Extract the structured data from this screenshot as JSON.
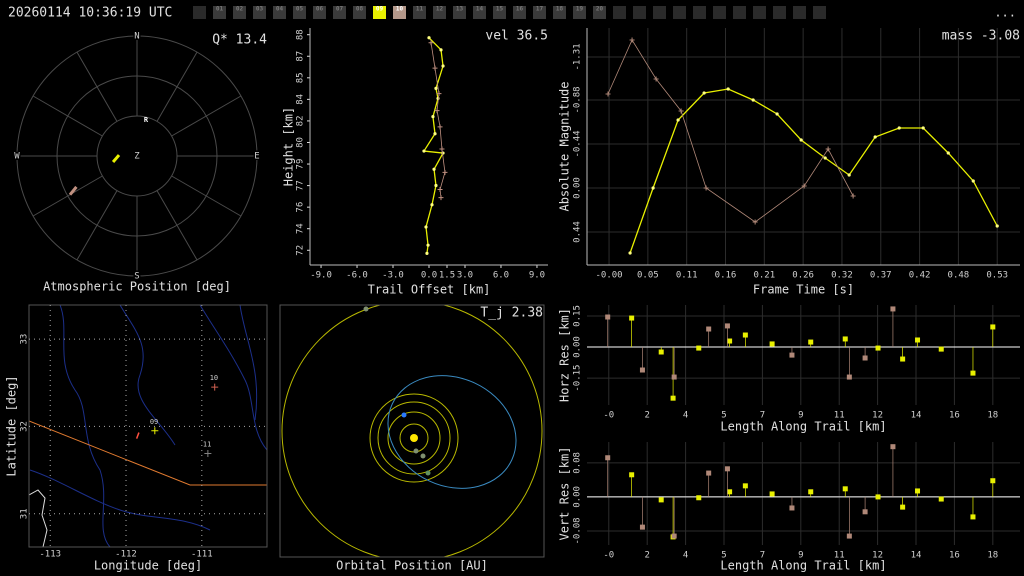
{
  "header": {
    "timestamp": "20260114 10:36:19 UTC",
    "menu": "...",
    "stations": [
      {
        "label": "01",
        "color": "#3a3a3a"
      },
      {
        "label": "02",
        "color": "#3a3a3a"
      },
      {
        "label": "03",
        "color": "#3a3a3a"
      },
      {
        "label": "04",
        "color": "#3a3a3a"
      },
      {
        "label": "05",
        "color": "#3a3a3a"
      },
      {
        "label": "06",
        "color": "#3a3a3a"
      },
      {
        "label": "07",
        "color": "#3a3a3a"
      },
      {
        "label": "08",
        "color": "#3a3a3a"
      },
      {
        "label": "09",
        "color": "#e8f000"
      },
      {
        "label": "10",
        "color": "#b4988a"
      },
      {
        "label": "11",
        "color": "#3a3a3a"
      },
      {
        "label": "12",
        "color": "#3a3a3a"
      },
      {
        "label": "13",
        "color": "#3a3a3a"
      },
      {
        "label": "14",
        "color": "#3a3a3a"
      },
      {
        "label": "15",
        "color": "#3a3a3a"
      },
      {
        "label": "16",
        "color": "#3a3a3a"
      },
      {
        "label": "17",
        "color": "#3a3a3a"
      },
      {
        "label": "18",
        "color": "#3a3a3a"
      },
      {
        "label": "19",
        "color": "#3a3a3a"
      },
      {
        "label": "20",
        "color": "#3a3a3a"
      }
    ]
  },
  "chart_data": [
    {
      "type": "polar",
      "xlabel": "Atmospheric Position [deg]",
      "annotation": "Q* 13.4",
      "compass": [
        "N",
        "E",
        "S",
        "W"
      ],
      "center_label": "Z",
      "rlim": [
        0,
        90
      ],
      "radiant": {
        "label": "R",
        "azimuth": 14,
        "zenith_angle": 28
      },
      "series": [
        {
          "color": "#e8f000",
          "azimuth": [
            256,
            273
          ],
          "zenith_angle": [
            18.5,
            13.5
          ]
        },
        {
          "color": "#c09080",
          "azimuth": [
            240,
            243
          ],
          "zenith_angle": [
            58,
            51
          ]
        }
      ]
    },
    {
      "type": "line",
      "xlabel": "Trail Offset [km]",
      "ylabel": "Height [km]",
      "annotation": "vel 36.5",
      "grid": false,
      "xlim": [
        -9.92,
        9.92
      ],
      "ylim": [
        71.2,
        88.9
      ],
      "xticks": [
        {
          "value": -9,
          "label": "-9.0"
        },
        {
          "value": -6,
          "label": "-6.0"
        },
        {
          "value": -3,
          "label": "-3.0"
        },
        {
          "value": 0,
          "label": "0.0"
        },
        {
          "value": 1.5,
          "label": "1.5"
        },
        {
          "value": 3,
          "label": "3.0"
        },
        {
          "value": 6,
          "label": "6.0"
        },
        {
          "value": 9,
          "label": "9.0"
        }
      ],
      "yticks": [
        {
          "value": 72.3,
          "label": "72"
        },
        {
          "value": 73.91,
          "label": "74"
        },
        {
          "value": 75.52,
          "label": "76"
        },
        {
          "value": 77.13,
          "label": "77"
        },
        {
          "value": 78.74,
          "label": "79"
        },
        {
          "value": 80.35,
          "label": "80"
        },
        {
          "value": 81.96,
          "label": "82"
        },
        {
          "value": 83.57,
          "label": "84"
        },
        {
          "value": 85.18,
          "label": "85"
        },
        {
          "value": 86.79,
          "label": "87"
        },
        {
          "value": 88.4,
          "label": "88"
        }
      ],
      "series": [
        {
          "color": "#e8f000",
          "marker": "dot",
          "x": [
            0,
            1.0,
            1.17,
            0.58,
            0.75,
            0.33,
            0.5,
            -0.42,
            1.17,
            0.42,
            0.58,
            0.25,
            -0.25,
            -0.08,
            -0.17
          ],
          "y": [
            88.17,
            87.27,
            86.06,
            84.39,
            83.64,
            82.28,
            81.0,
            79.71,
            79.56,
            78.35,
            77.14,
            75.7,
            74.04,
            72.68,
            72.07
          ]
        },
        {
          "color": "#c09080",
          "marker": "plus",
          "x": [
            0.17,
            0.5,
            0.83,
            0.67,
            0.92,
            1.08,
            1.33,
            0.92,
            1.0
          ],
          "y": [
            87.8,
            85.9,
            84.0,
            82.73,
            81.52,
            79.86,
            78.12,
            76.84,
            76.23
          ]
        }
      ]
    },
    {
      "type": "line",
      "xlabel": "Frame Time [s]",
      "ylabel": "Absolute Magnitude",
      "annotation": "mass -3.08",
      "grid": true,
      "xlim": [
        -0.03,
        0.559
      ],
      "ylim": [
        0.77,
        -1.6
      ],
      "xticks": [
        {
          "value": 0,
          "label": "-0.00"
        },
        {
          "value": 0.0528,
          "label": "0.05"
        },
        {
          "value": 0.1056,
          "label": "0.11"
        },
        {
          "value": 0.1584,
          "label": "0.16"
        },
        {
          "value": 0.2112,
          "label": "0.21"
        },
        {
          "value": 0.264,
          "label": "0.26"
        },
        {
          "value": 0.3168,
          "label": "0.32"
        },
        {
          "value": 0.3696,
          "label": "0.37"
        },
        {
          "value": 0.4224,
          "label": "0.42"
        },
        {
          "value": 0.4752,
          "label": "0.48"
        },
        {
          "value": 0.528,
          "label": "0.53"
        }
      ],
      "yticks": [
        -1.31,
        -0.88,
        -0.44,
        {
          "value": 0,
          "label": "0.00"
        },
        0.44
      ],
      "series": [
        {
          "color": "#e8f000",
          "marker": "dot",
          "x": [
            0.0286,
            0.0599,
            0.0939,
            0.1293,
            0.162,
            0.196,
            0.2286,
            0.2613,
            0.294,
            0.3266,
            0.362,
            0.3947,
            0.4273,
            0.4614,
            0.4954,
            0.528
          ],
          "y": [
            0.65,
            0,
            -0.68,
            -0.95,
            -0.99,
            -0.88,
            -0.74,
            -0.48,
            -0.3,
            -0.13,
            -0.51,
            -0.6,
            -0.6,
            -0.35,
            -0.07,
            0.38
          ]
        },
        {
          "color": "#b08878",
          "marker": "plus",
          "x": [
            -0.0014,
            0.0313,
            0.064,
            0.098,
            0.132,
            0.1987,
            0.2654,
            0.298,
            0.332
          ],
          "y": [
            -0.94,
            -1.48,
            -1.09,
            -0.77,
            0,
            0.34,
            -0.02,
            -0.39,
            0.08
          ]
        }
      ]
    },
    {
      "type": "scatter",
      "xlabel": "Longitude [deg]",
      "ylabel": "Latitude [deg]",
      "grid": true,
      "xlim": [
        -113.28,
        -110.14
      ],
      "ylim": [
        30.62,
        33.39
      ],
      "xticks": [
        -113,
        -112,
        -111
      ],
      "yticks": [
        31,
        32,
        33
      ],
      "points": {
        "labels": [
          "09",
          "10",
          "11"
        ],
        "x": [
          -111.62,
          -110.83,
          -110.92
        ],
        "y": [
          31.95,
          32.45,
          31.69
        ],
        "colors": [
          "#e8f000",
          "#d06050",
          "#808080"
        ]
      },
      "series": [
        {
          "color": "#ff5040",
          "x": [
            -111.83,
            -111.86
          ],
          "y": [
            31.93,
            31.86
          ]
        }
      ]
    },
    {
      "type": "orbit",
      "xlabel": "Orbital Position [AU]",
      "annotation": "T_j 2.38"
    },
    {
      "type": "stem",
      "xlabel": "Length Along Trail [km]",
      "ylabel": "Horz Res [km]",
      "grid": true,
      "xlim": [
        -1.01,
        19.06
      ],
      "ylim": [
        -0.28,
        0.203
      ],
      "xticks": [
        {
          "value": 0,
          "label": "-0"
        },
        {
          "value": 1.78,
          "label": "2"
        },
        {
          "value": 3.56,
          "label": "4"
        },
        {
          "value": 5.34,
          "label": "5"
        },
        {
          "value": 7.12,
          "label": "7"
        },
        {
          "value": 8.9,
          "label": "9"
        },
        {
          "value": 10.68,
          "label": "11"
        },
        {
          "value": 12.46,
          "label": "12"
        },
        {
          "value": 14.24,
          "label": "14"
        },
        {
          "value": 16.02,
          "label": "16"
        },
        {
          "value": 17.8,
          "label": "18"
        }
      ],
      "yticks": [
        0.15,
        {
          "value": 0,
          "label": "0.00"
        },
        -0.15
      ],
      "series": [
        {
          "color": "#e8f000",
          "x": [
            1.06,
            2.43,
            2.98,
            4.17,
            5.6,
            6.33,
            7.57,
            9.36,
            10.96,
            12.48,
            13.62,
            14.31,
            15.41,
            16.88,
            17.8
          ],
          "y": [
            0.14,
            -0.024,
            -0.247,
            -0.005,
            0.029,
            0.058,
            0.015,
            0.024,
            0.039,
            -0.005,
            -0.058,
            0.034,
            -0.01,
            -0.126,
            0.097
          ]
        },
        {
          "color": "#b08878",
          "x": [
            -0.05,
            1.56,
            3.03,
            4.63,
            5.5,
            8.49,
            11.15,
            11.88,
            13.17
          ],
          "y": [
            0.145,
            -0.111,
            -0.145,
            0.087,
            0.102,
            -0.039,
            -0.145,
            -0.053,
            0.184
          ]
        }
      ]
    },
    {
      "type": "stem",
      "xlabel": "Length Along Trail [km]",
      "ylabel": "Vert Res [km]",
      "grid": true,
      "xlim": [
        -1.01,
        19.06
      ],
      "ylim": [
        -0.113,
        0.129
      ],
      "xticks": [
        {
          "value": 0,
          "label": "-0"
        },
        {
          "value": 1.78,
          "label": "2"
        },
        {
          "value": 3.56,
          "label": "4"
        },
        {
          "value": 5.34,
          "label": "5"
        },
        {
          "value": 7.12,
          "label": "7"
        },
        {
          "value": 8.9,
          "label": "9"
        },
        {
          "value": 10.68,
          "label": "11"
        },
        {
          "value": 12.46,
          "label": "12"
        },
        {
          "value": 14.24,
          "label": "14"
        },
        {
          "value": 16.02,
          "label": "16"
        },
        {
          "value": 17.8,
          "label": "18"
        }
      ],
      "yticks": [
        0.08,
        {
          "value": 0,
          "label": "0.00"
        },
        -0.08
      ],
      "series": [
        {
          "color": "#e8f000",
          "x": [
            1.06,
            2.43,
            2.98,
            4.17,
            5.6,
            6.33,
            7.57,
            9.36,
            10.96,
            12.48,
            13.62,
            14.31,
            15.41,
            16.88,
            17.8
          ],
          "y": [
            0.052,
            -0.007,
            -0.094,
            -0.002,
            0.012,
            0.026,
            0.007,
            0.012,
            0.019,
            0,
            -0.024,
            0.014,
            -0.005,
            -0.047,
            0.038
          ]
        },
        {
          "color": "#b08878",
          "x": [
            -0.05,
            1.56,
            3.03,
            4.63,
            5.5,
            8.49,
            11.15,
            11.88,
            13.17
          ],
          "y": [
            0.092,
            -0.071,
            -0.092,
            0.056,
            0.066,
            -0.026,
            -0.092,
            -0.035,
            0.118
          ]
        }
      ]
    }
  ]
}
